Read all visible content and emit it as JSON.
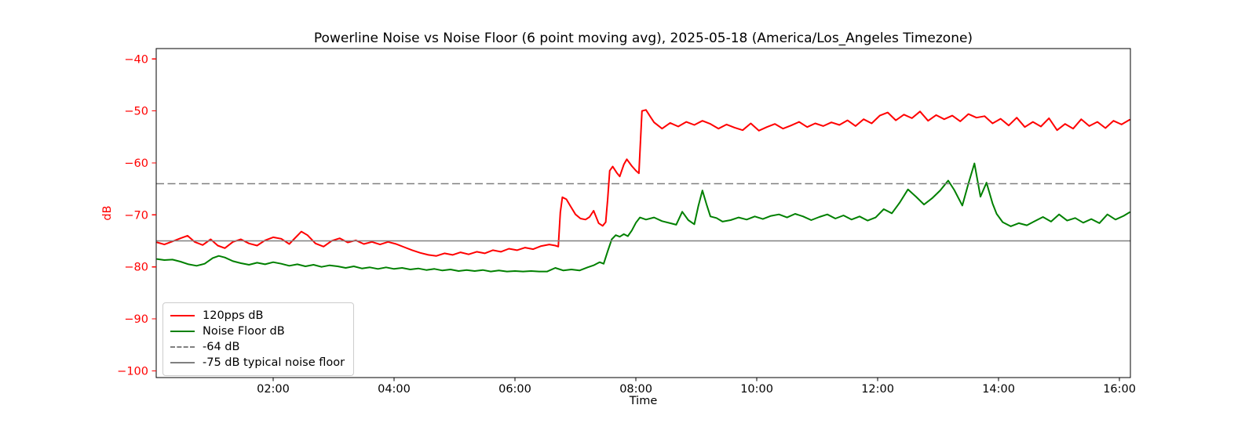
{
  "chart_data": {
    "type": "line",
    "title": "Powerline Noise vs Noise Floor (6 point moving avg), 2025-05-18 (America/Los_Angeles Timezone)",
    "xlabel": "Time",
    "ylabel": "dB",
    "grid": false,
    "legend_location": "lower left",
    "x_range_hours": [
      0.065,
      16.18
    ],
    "y_range": [
      -101.3,
      -38.0
    ],
    "x_ticks_hours": [
      2,
      4,
      6,
      8,
      10,
      12,
      14,
      16
    ],
    "x_tick_labels": [
      "02:00",
      "04:00",
      "06:00",
      "08:00",
      "10:00",
      "12:00",
      "14:00",
      "16:00"
    ],
    "y_ticks": [
      -40,
      -50,
      -60,
      -70,
      -80,
      -90,
      -100
    ],
    "y_tick_labels": [
      "−40",
      "−50",
      "−60",
      "−70",
      "−80",
      "−90",
      "−100"
    ],
    "axis_colors": {
      "y_tick_color": "#ff0000",
      "y_label_color": "#ff0000",
      "x_tick_color": "#000000",
      "x_label_color": "#000000",
      "spine_color": "#000000",
      "title_color": "#000000"
    },
    "reference_lines": [
      {
        "label": "-64 dB",
        "value": -64,
        "color": "#808080",
        "style": "dashed"
      },
      {
        "label": "-75 dB typical noise floor",
        "value": -75,
        "color": "#808080",
        "style": "solid"
      }
    ],
    "series": [
      {
        "name": "120pps dB",
        "color": "#ff0000",
        "style": "solid",
        "points": [
          [
            "00:05",
            -75.3
          ],
          [
            "00:12",
            -75.7
          ],
          [
            "00:20",
            -75.1
          ],
          [
            "00:28",
            -74.5
          ],
          [
            "00:35",
            -74.0
          ],
          [
            "00:42",
            -75.2
          ],
          [
            "00:50",
            -75.8
          ],
          [
            "00:58",
            -74.7
          ],
          [
            "01:05",
            -75.9
          ],
          [
            "01:12",
            -76.4
          ],
          [
            "01:20",
            -75.2
          ],
          [
            "01:28",
            -74.7
          ],
          [
            "01:36",
            -75.5
          ],
          [
            "01:44",
            -75.9
          ],
          [
            "01:52",
            -74.9
          ],
          [
            "02:00",
            -74.3
          ],
          [
            "02:08",
            -74.6
          ],
          [
            "02:16",
            -75.6
          ],
          [
            "02:22",
            -74.4
          ],
          [
            "02:28",
            -73.2
          ],
          [
            "02:34",
            -73.9
          ],
          [
            "02:42",
            -75.5
          ],
          [
            "02:50",
            -76.1
          ],
          [
            "02:58",
            -75.0
          ],
          [
            "03:06",
            -74.5
          ],
          [
            "03:14",
            -75.3
          ],
          [
            "03:22",
            -74.9
          ],
          [
            "03:30",
            -75.6
          ],
          [
            "03:38",
            -75.2
          ],
          [
            "03:46",
            -75.7
          ],
          [
            "03:54",
            -75.2
          ],
          [
            "04:02",
            -75.6
          ],
          [
            "04:10",
            -76.2
          ],
          [
            "04:18",
            -76.8
          ],
          [
            "04:26",
            -77.3
          ],
          [
            "04:34",
            -77.7
          ],
          [
            "04:42",
            -77.9
          ],
          [
            "04:50",
            -77.4
          ],
          [
            "04:58",
            -77.7
          ],
          [
            "05:06",
            -77.2
          ],
          [
            "05:14",
            -77.6
          ],
          [
            "05:22",
            -77.1
          ],
          [
            "05:30",
            -77.4
          ],
          [
            "05:38",
            -76.8
          ],
          [
            "05:46",
            -77.1
          ],
          [
            "05:54",
            -76.5
          ],
          [
            "06:02",
            -76.8
          ],
          [
            "06:10",
            -76.3
          ],
          [
            "06:18",
            -76.6
          ],
          [
            "06:26",
            -76.0
          ],
          [
            "06:34",
            -75.7
          ],
          [
            "06:40",
            -75.9
          ],
          [
            "06:43",
            -76.1
          ],
          [
            "06:45",
            -69.5
          ],
          [
            "06:47",
            -66.6
          ],
          [
            "06:51",
            -67.0
          ],
          [
            "06:55",
            -68.3
          ],
          [
            "07:00",
            -69.9
          ],
          [
            "07:05",
            -70.7
          ],
          [
            "07:10",
            -70.9
          ],
          [
            "07:14",
            -70.4
          ],
          [
            "07:18",
            -69.2
          ],
          [
            "07:23",
            -71.6
          ],
          [
            "07:27",
            -72.1
          ],
          [
            "07:30",
            -71.4
          ],
          [
            "07:32",
            -67.0
          ],
          [
            "07:34",
            -61.5
          ],
          [
            "07:37",
            -60.7
          ],
          [
            "07:41",
            -61.9
          ],
          [
            "07:44",
            -62.6
          ],
          [
            "07:48",
            -60.3
          ],
          [
            "07:51",
            -59.3
          ],
          [
            "07:56",
            -60.6
          ],
          [
            "08:00",
            -61.5
          ],
          [
            "08:03",
            -62.0
          ],
          [
            "08:06",
            -50.0
          ],
          [
            "08:10",
            -49.8
          ],
          [
            "08:14",
            -51.0
          ],
          [
            "08:18",
            -52.2
          ],
          [
            "08:26",
            -53.4
          ],
          [
            "08:34",
            -52.3
          ],
          [
            "08:42",
            -53.0
          ],
          [
            "08:50",
            -52.1
          ],
          [
            "08:58",
            -52.7
          ],
          [
            "09:06",
            -51.9
          ],
          [
            "09:14",
            -52.5
          ],
          [
            "09:22",
            -53.4
          ],
          [
            "09:30",
            -52.6
          ],
          [
            "09:38",
            -53.2
          ],
          [
            "09:46",
            -53.7
          ],
          [
            "09:54",
            -52.4
          ],
          [
            "10:02",
            -53.8
          ],
          [
            "10:10",
            -53.1
          ],
          [
            "10:18",
            -52.5
          ],
          [
            "10:26",
            -53.4
          ],
          [
            "10:34",
            -52.8
          ],
          [
            "10:42",
            -52.1
          ],
          [
            "10:50",
            -53.1
          ],
          [
            "10:58",
            -52.4
          ],
          [
            "11:06",
            -52.9
          ],
          [
            "11:14",
            -52.2
          ],
          [
            "11:22",
            -52.7
          ],
          [
            "11:30",
            -51.8
          ],
          [
            "11:38",
            -52.9
          ],
          [
            "11:46",
            -51.6
          ],
          [
            "11:54",
            -52.4
          ],
          [
            "12:02",
            -50.9
          ],
          [
            "12:10",
            -50.3
          ],
          [
            "12:18",
            -51.8
          ],
          [
            "12:26",
            -50.7
          ],
          [
            "12:34",
            -51.4
          ],
          [
            "12:42",
            -50.1
          ],
          [
            "12:50",
            -51.9
          ],
          [
            "12:58",
            -50.8
          ],
          [
            "13:06",
            -51.6
          ],
          [
            "13:14",
            -50.9
          ],
          [
            "13:22",
            -52.0
          ],
          [
            "13:30",
            -50.6
          ],
          [
            "13:38",
            -51.3
          ],
          [
            "13:46",
            -51.0
          ],
          [
            "13:54",
            -52.4
          ],
          [
            "14:02",
            -51.5
          ],
          [
            "14:10",
            -52.8
          ],
          [
            "14:18",
            -51.3
          ],
          [
            "14:26",
            -53.1
          ],
          [
            "14:34",
            -52.1
          ],
          [
            "14:42",
            -53.0
          ],
          [
            "14:50",
            -51.4
          ],
          [
            "14:58",
            -53.7
          ],
          [
            "15:06",
            -52.5
          ],
          [
            "15:14",
            -53.4
          ],
          [
            "15:22",
            -51.6
          ],
          [
            "15:30",
            -52.9
          ],
          [
            "15:38",
            -52.1
          ],
          [
            "15:46",
            -53.3
          ],
          [
            "15:54",
            -51.9
          ],
          [
            "16:02",
            -52.6
          ],
          [
            "16:10",
            -51.7
          ]
        ]
      },
      {
        "name": "Noise Floor dB",
        "color": "#008000",
        "style": "solid",
        "points": [
          [
            "00:05",
            -78.5
          ],
          [
            "00:12",
            -78.7
          ],
          [
            "00:20",
            -78.6
          ],
          [
            "00:28",
            -79.0
          ],
          [
            "00:36",
            -79.5
          ],
          [
            "00:44",
            -79.8
          ],
          [
            "00:52",
            -79.4
          ],
          [
            "01:00",
            -78.3
          ],
          [
            "01:06",
            -77.9
          ],
          [
            "01:12",
            -78.2
          ],
          [
            "01:20",
            -78.9
          ],
          [
            "01:28",
            -79.3
          ],
          [
            "01:36",
            -79.6
          ],
          [
            "01:44",
            -79.2
          ],
          [
            "01:52",
            -79.5
          ],
          [
            "02:00",
            -79.1
          ],
          [
            "02:08",
            -79.4
          ],
          [
            "02:16",
            -79.8
          ],
          [
            "02:24",
            -79.5
          ],
          [
            "02:32",
            -79.9
          ],
          [
            "02:40",
            -79.6
          ],
          [
            "02:48",
            -80.0
          ],
          [
            "02:56",
            -79.7
          ],
          [
            "03:04",
            -79.9
          ],
          [
            "03:12",
            -80.2
          ],
          [
            "03:20",
            -79.9
          ],
          [
            "03:28",
            -80.3
          ],
          [
            "03:36",
            -80.1
          ],
          [
            "03:44",
            -80.4
          ],
          [
            "03:52",
            -80.1
          ],
          [
            "04:00",
            -80.4
          ],
          [
            "04:08",
            -80.2
          ],
          [
            "04:16",
            -80.5
          ],
          [
            "04:24",
            -80.3
          ],
          [
            "04:32",
            -80.6
          ],
          [
            "04:40",
            -80.4
          ],
          [
            "04:48",
            -80.7
          ],
          [
            "04:56",
            -80.5
          ],
          [
            "05:04",
            -80.8
          ],
          [
            "05:12",
            -80.6
          ],
          [
            "05:20",
            -80.8
          ],
          [
            "05:28",
            -80.6
          ],
          [
            "05:36",
            -80.9
          ],
          [
            "05:44",
            -80.7
          ],
          [
            "05:52",
            -80.9
          ],
          [
            "06:00",
            -80.8
          ],
          [
            "06:08",
            -80.9
          ],
          [
            "06:16",
            -80.8
          ],
          [
            "06:24",
            -80.9
          ],
          [
            "06:32",
            -80.9
          ],
          [
            "06:40",
            -80.2
          ],
          [
            "06:48",
            -80.7
          ],
          [
            "06:56",
            -80.5
          ],
          [
            "07:04",
            -80.7
          ],
          [
            "07:12",
            -80.1
          ],
          [
            "07:18",
            -79.7
          ],
          [
            "07:24",
            -79.1
          ],
          [
            "07:28",
            -79.4
          ],
          [
            "07:32",
            -77.0
          ],
          [
            "07:36",
            -74.7
          ],
          [
            "07:40",
            -73.9
          ],
          [
            "07:44",
            -74.2
          ],
          [
            "07:48",
            -73.7
          ],
          [
            "07:52",
            -74.1
          ],
          [
            "07:56",
            -73.0
          ],
          [
            "08:00",
            -71.5
          ],
          [
            "08:04",
            -70.5
          ],
          [
            "08:10",
            -70.9
          ],
          [
            "08:18",
            -70.5
          ],
          [
            "08:26",
            -71.2
          ],
          [
            "08:34",
            -71.6
          ],
          [
            "08:40",
            -71.9
          ],
          [
            "08:46",
            -69.4
          ],
          [
            "08:52",
            -71.0
          ],
          [
            "08:58",
            -71.8
          ],
          [
            "09:02",
            -68.3
          ],
          [
            "09:06",
            -65.3
          ],
          [
            "09:10",
            -67.9
          ],
          [
            "09:14",
            -70.3
          ],
          [
            "09:20",
            -70.6
          ],
          [
            "09:26",
            -71.3
          ],
          [
            "09:34",
            -71.0
          ],
          [
            "09:42",
            -70.5
          ],
          [
            "09:50",
            -70.9
          ],
          [
            "09:58",
            -70.3
          ],
          [
            "10:06",
            -70.8
          ],
          [
            "10:14",
            -70.2
          ],
          [
            "10:22",
            -69.9
          ],
          [
            "10:30",
            -70.5
          ],
          [
            "10:38",
            -69.8
          ],
          [
            "10:46",
            -70.3
          ],
          [
            "10:54",
            -71.0
          ],
          [
            "11:02",
            -70.4
          ],
          [
            "11:10",
            -69.9
          ],
          [
            "11:18",
            -70.7
          ],
          [
            "11:26",
            -70.1
          ],
          [
            "11:34",
            -70.9
          ],
          [
            "11:42",
            -70.3
          ],
          [
            "11:50",
            -71.1
          ],
          [
            "11:58",
            -70.5
          ],
          [
            "12:06",
            -68.9
          ],
          [
            "12:14",
            -69.7
          ],
          [
            "12:22",
            -67.6
          ],
          [
            "12:30",
            -65.1
          ],
          [
            "12:38",
            -66.5
          ],
          [
            "12:46",
            -68.0
          ],
          [
            "12:54",
            -66.8
          ],
          [
            "13:02",
            -65.3
          ],
          [
            "13:10",
            -63.4
          ],
          [
            "13:16",
            -65.2
          ],
          [
            "13:24",
            -68.2
          ],
          [
            "13:30",
            -64.0
          ],
          [
            "13:36",
            -60.1
          ],
          [
            "13:42",
            -66.5
          ],
          [
            "13:48",
            -63.8
          ],
          [
            "13:54",
            -67.8
          ],
          [
            "13:58",
            -69.8
          ],
          [
            "14:04",
            -71.4
          ],
          [
            "14:12",
            -72.2
          ],
          [
            "14:20",
            -71.6
          ],
          [
            "14:28",
            -72.0
          ],
          [
            "14:36",
            -71.2
          ],
          [
            "14:44",
            -70.4
          ],
          [
            "14:52",
            -71.3
          ],
          [
            "15:00",
            -69.9
          ],
          [
            "15:08",
            -71.1
          ],
          [
            "15:16",
            -70.6
          ],
          [
            "15:24",
            -71.5
          ],
          [
            "15:32",
            -70.8
          ],
          [
            "15:40",
            -71.6
          ],
          [
            "15:48",
            -69.9
          ],
          [
            "15:56",
            -70.9
          ],
          [
            "16:04",
            -70.2
          ],
          [
            "16:10",
            -69.5
          ]
        ]
      }
    ],
    "legend": [
      {
        "label": "120pps dB",
        "color": "#ff0000",
        "style": "solid"
      },
      {
        "label": "Noise Floor dB",
        "color": "#008000",
        "style": "solid"
      },
      {
        "label": "-64 dB",
        "color": "#808080",
        "style": "dashed"
      },
      {
        "label": "-75 dB typical noise floor",
        "color": "#808080",
        "style": "solid"
      }
    ]
  }
}
